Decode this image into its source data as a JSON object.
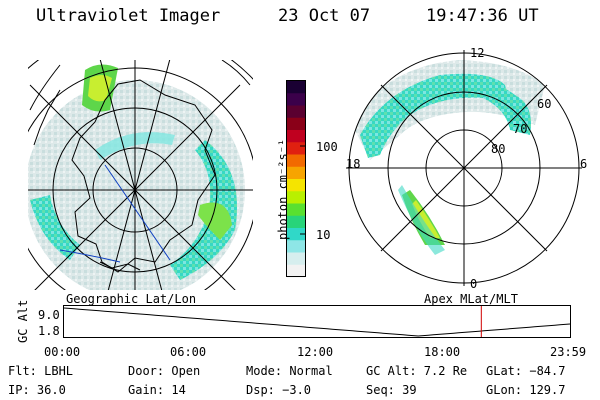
{
  "header": {
    "title": "Ultraviolet Imager",
    "date": "23 Oct 07",
    "time": "19:47:36 UT"
  },
  "left_plot": {
    "label": "Geographic Lat/Lon"
  },
  "right_plot": {
    "label": "Apex  MLat/MLT",
    "mlt_labels": {
      "top": "12",
      "left": "18",
      "right": "6",
      "bottom": "0"
    },
    "lat_labels": [
      "60",
      "70",
      "80"
    ]
  },
  "colorbar": {
    "unit": "photon cm⁻²s⁻¹",
    "ticks": [
      "100",
      "10"
    ],
    "colors": [
      "#1a0033",
      "#3b004a",
      "#5a0030",
      "#8a0018",
      "#c0001f",
      "#e02010",
      "#f26a00",
      "#f7a400",
      "#f5e400",
      "#b9f000",
      "#59e030",
      "#28d47a",
      "#30d8c8",
      "#8ee6e6",
      "#d6eeee",
      "#f2f2f2"
    ]
  },
  "timeline": {
    "ylabel": "GC Alt",
    "yticks": [
      "9.0",
      "1.8"
    ],
    "xticks": [
      "00:00",
      "06:00",
      "12:00",
      "18:00",
      "23:59"
    ],
    "marker": "19:47:36",
    "marker_color": "#d00000"
  },
  "info": {
    "row1": [
      "Flt: LBHL",
      "Door: Open",
      "Mode: Normal",
      "GC Alt: 7.2 Re",
      "GLat: −84.7"
    ],
    "row2": [
      "IP: 36.0",
      "Gain: 14",
      "Dsp:    −3.0",
      "Seq: 39",
      "GLon: 129.7"
    ]
  },
  "palette": {
    "aurora_cyan": "#33d6c0",
    "aurora_green": "#6fe040",
    "aurora_yellow": "#d8f030",
    "noise": "#d9e6e6"
  }
}
